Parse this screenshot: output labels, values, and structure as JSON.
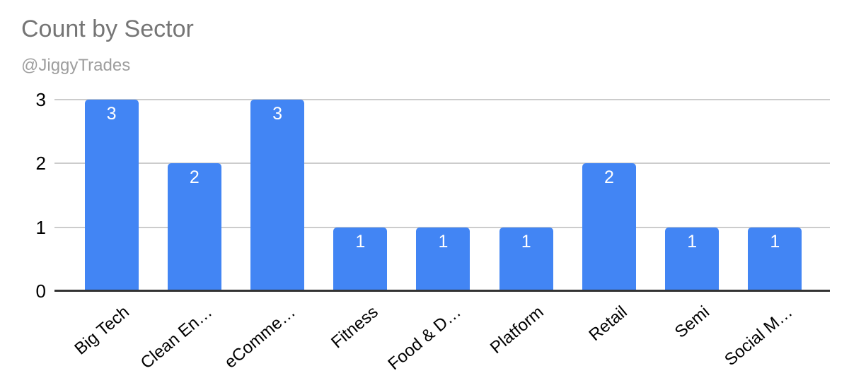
{
  "chart_data": {
    "type": "bar",
    "title": "Count by Sector",
    "subtitle": "@JiggyTrades",
    "categories": [
      "Big Tech",
      "Clean En…",
      "eComme…",
      "Fitness",
      "Food & D…",
      "Platform",
      "Retail",
      "Semi",
      "Social M…"
    ],
    "values": [
      3,
      2,
      3,
      1,
      1,
      1,
      2,
      1,
      1
    ],
    "yticks": [
      0,
      1,
      2,
      3
    ],
    "ylim": [
      0,
      3
    ],
    "xlabel": "",
    "ylabel": "",
    "grid": true,
    "legend": "none",
    "data_labels_visible": true,
    "colors": {
      "bar": "#4285f4",
      "bar_value_label": "#ffffff",
      "title": "#757575",
      "subtitle": "#9e9e9e",
      "axis_text": "#000000",
      "gridline": "#cccccc",
      "axis_line": "#333333",
      "background": "#ffffff"
    }
  }
}
